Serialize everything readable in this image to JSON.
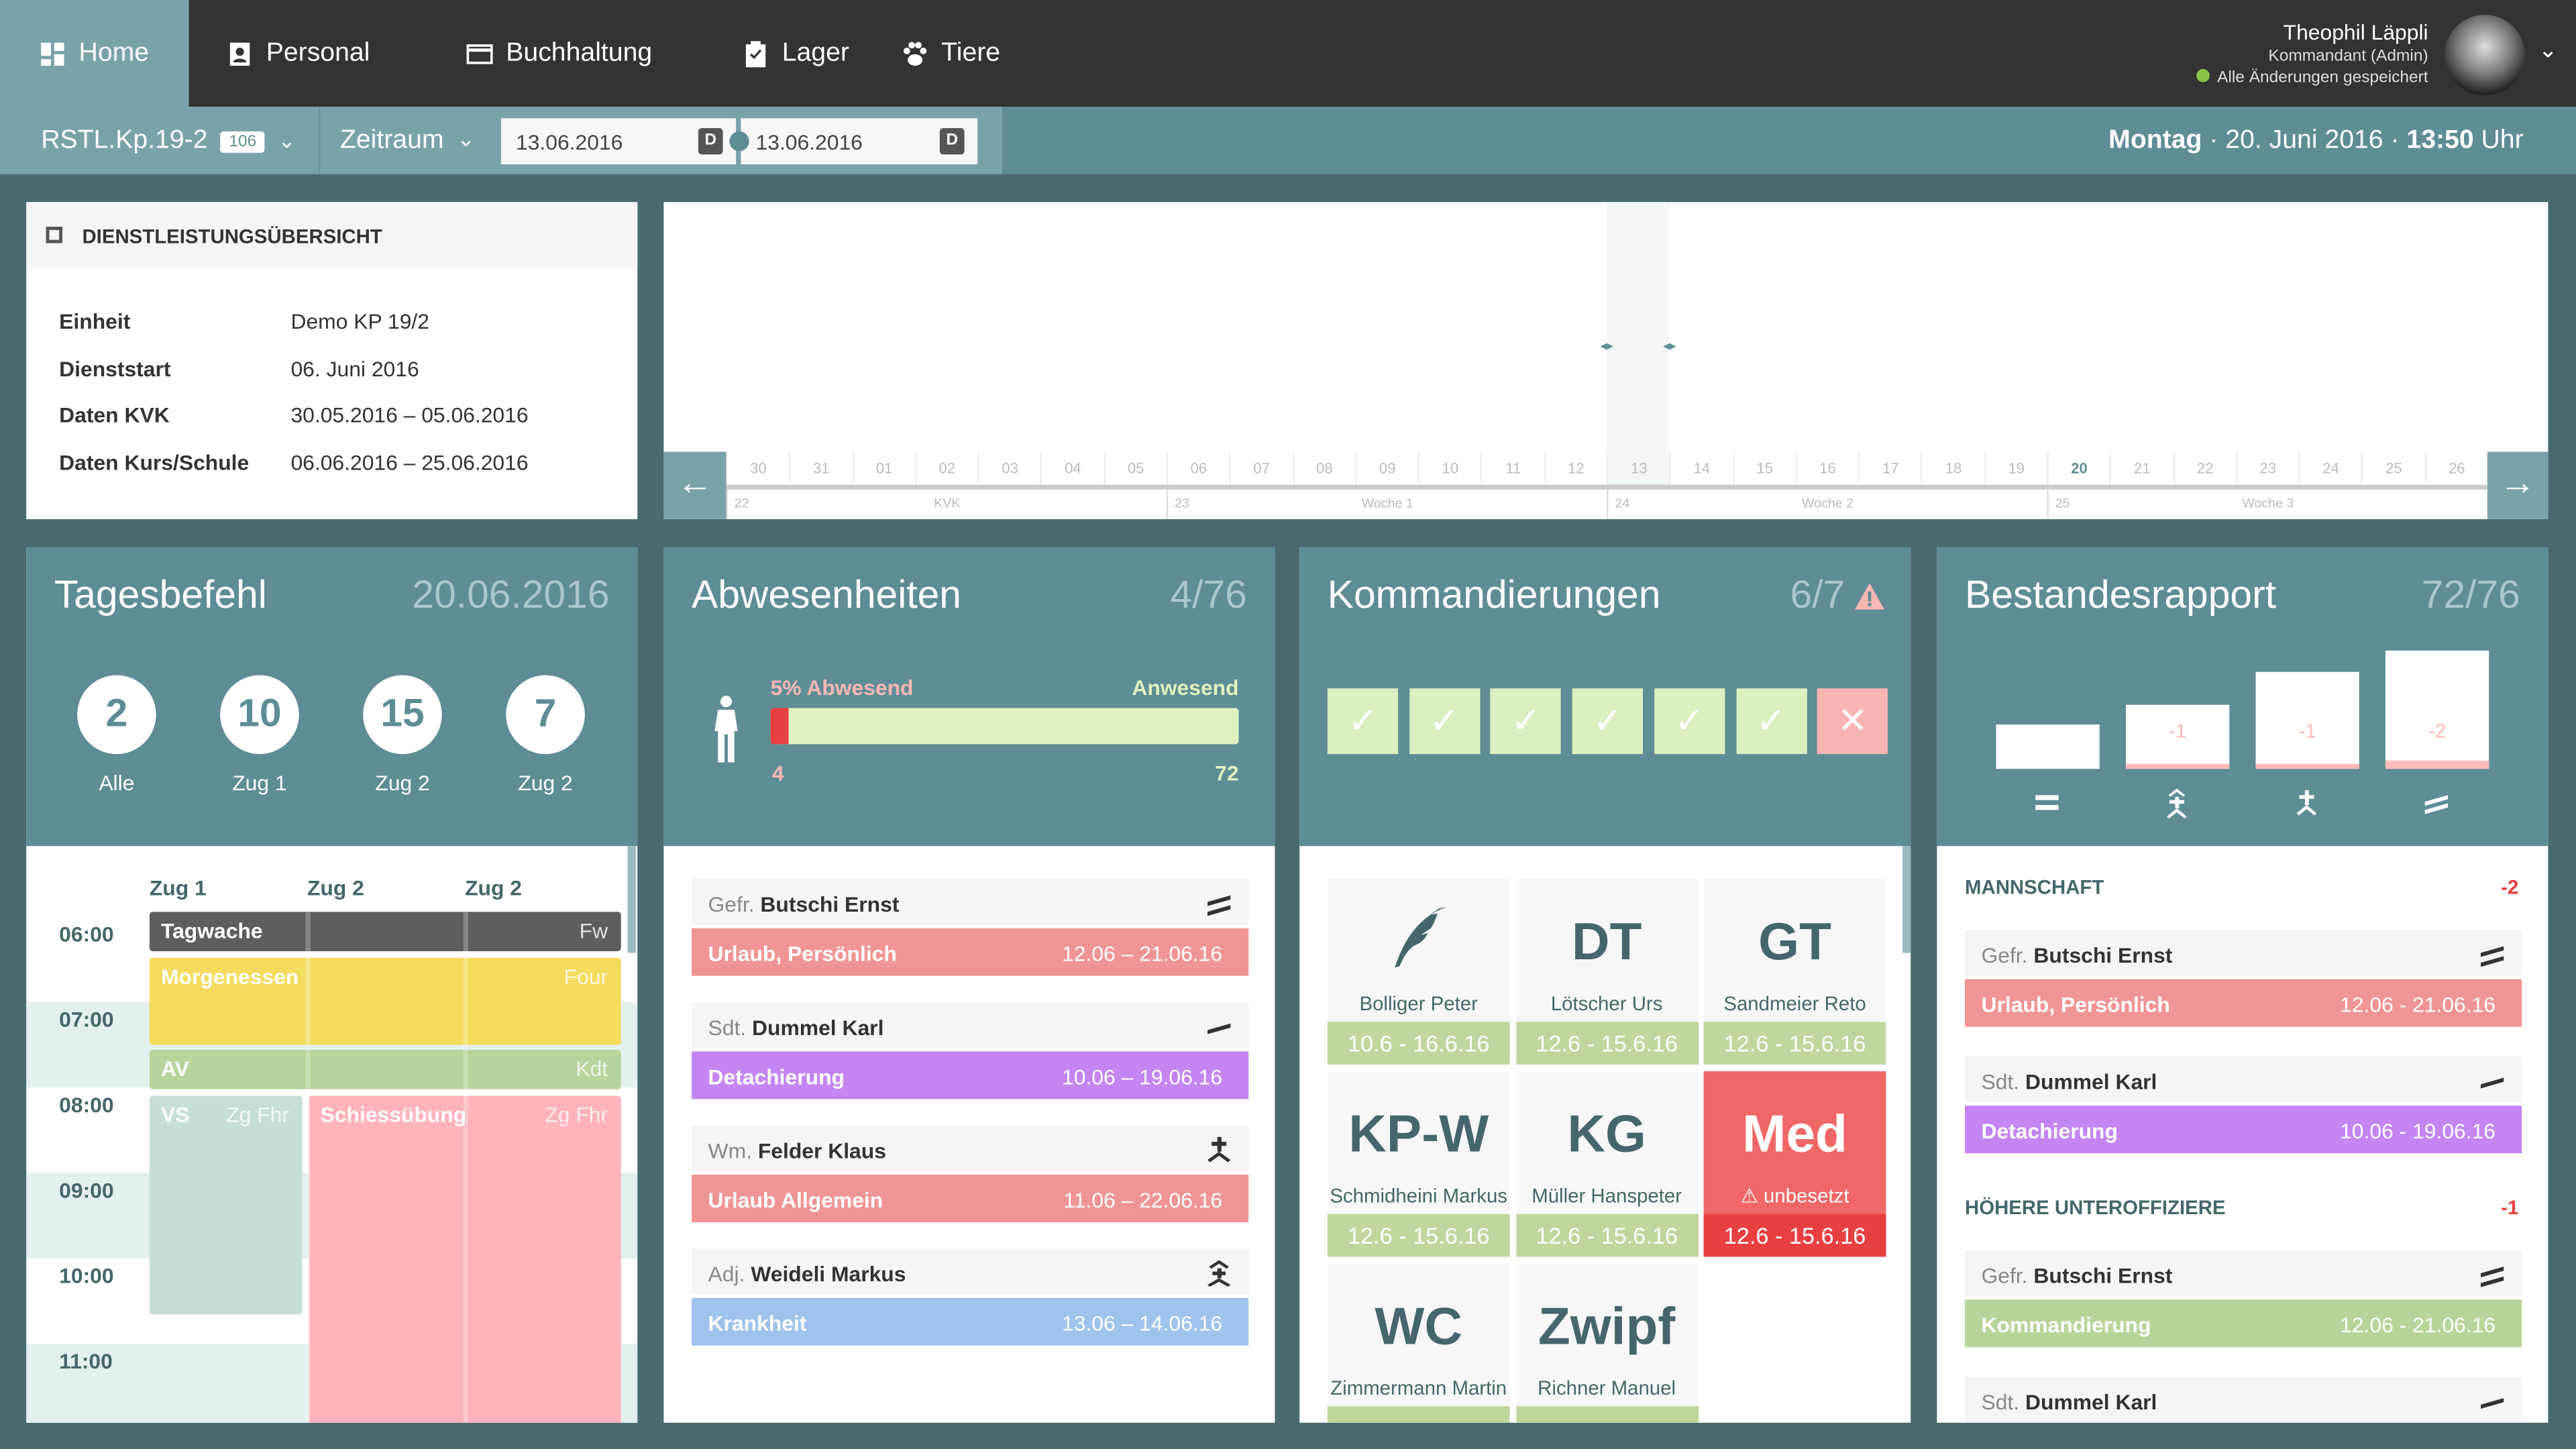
{
  "nav": {
    "items": [
      {
        "label": "Home",
        "icon": "dashboard-icon",
        "active": true
      },
      {
        "label": "Personal",
        "icon": "person-badge-icon"
      },
      {
        "label": "Buchhaltung",
        "icon": "credit-card-icon"
      },
      {
        "label": "Lager",
        "icon": "clipboard-check-icon"
      },
      {
        "label": "Tiere",
        "icon": "paw-icon"
      }
    ]
  },
  "user": {
    "name": "Theophil Läppli",
    "role": "Kommandant (Admin)",
    "status": "Alle Änderungen gespeichert",
    "status_color": "#8bc34a"
  },
  "toolbar": {
    "unit": "RSTL.Kp.19-2",
    "unit_badge": "106",
    "period_label": "Zeitraum",
    "date_from": "13.06.2016",
    "date_to": "13.06.2016",
    "date_icon": "D",
    "now_day": "Montag",
    "now_date": " · 20. Juni 2016 · ",
    "now_time": "13:50",
    "now_suffix": " Uhr"
  },
  "overview": {
    "title": "DIENSTLEISTUNGSÜBERSICHT",
    "rows": [
      {
        "k": "Einheit",
        "v": "Demo KP 19/2"
      },
      {
        "k": "Dienststart",
        "v": "06. Juni 2016"
      },
      {
        "k": "Daten KVK",
        "v": "30.05.2016 – 05.06.2016"
      },
      {
        "k": "Daten Kurs/Schule",
        "v": "06.06.2016 – 25.06.2016"
      }
    ]
  },
  "timeline": {
    "days": [
      "30",
      "31",
      "01",
      "02",
      "03",
      "04",
      "05",
      "06",
      "07",
      "08",
      "09",
      "10",
      "11",
      "12",
      "13",
      "14",
      "15",
      "16",
      "17",
      "18",
      "19",
      "20",
      "21",
      "22",
      "23",
      "24",
      "25",
      "26"
    ],
    "today": "20",
    "selected": "13",
    "weeks": [
      {
        "num": "22",
        "label": "KVK"
      },
      {
        "num": "23",
        "label": "Woche 1"
      },
      {
        "num": "24",
        "label": "Woche 2"
      },
      {
        "num": "25",
        "label": "Woche 3"
      }
    ]
  },
  "tagesbefehl": {
    "title": "Tagesbefehl",
    "date": "20.06.2016",
    "counters": [
      {
        "n": "2",
        "label": "Alle"
      },
      {
        "n": "10",
        "label": "Zug 1"
      },
      {
        "n": "15",
        "label": "Zug 2"
      },
      {
        "n": "7",
        "label": "Zug 2"
      }
    ],
    "columns": [
      "Zug 1",
      "Zug 2",
      "Zug 2"
    ],
    "hours": [
      "06:00",
      "07:00",
      "08:00",
      "09:00",
      "10:00",
      "11:00"
    ],
    "events": [
      {
        "title": "Tagwache",
        "who": "Fw",
        "color": "#5e5e5e"
      },
      {
        "title": "Morgenessen",
        "who": "Four",
        "color": "#f3dc5e"
      },
      {
        "title": "AV",
        "who": "Kdt",
        "color": "#b8d39c"
      },
      {
        "title": "VS",
        "who": "Zg Fhr",
        "color": "#c9dcdc"
      },
      {
        "title": "Schiessübung",
        "who": "Zg Fhr",
        "color": "#feb3bd"
      }
    ]
  },
  "abwesenheiten": {
    "title": "Abwesenheiten",
    "count": "4/76",
    "absent_label": "5% Abwesend",
    "present_label": "Anwesend",
    "absent": "4",
    "present": "72",
    "absent_fraction": 0.053,
    "items": [
      {
        "rank": "Gefr.",
        "name": "Butschi Ernst",
        "rank_icon": "gefreiter-icon",
        "type": "Urlaub, Persönlich",
        "dates": "12.06 – 21.06.16",
        "color": "#f09595"
      },
      {
        "rank": "Sdt.",
        "name": "Dummel Karl",
        "rank_icon": "soldat-icon",
        "type": "Detachierung",
        "dates": "10.06 – 19.06.16",
        "color": "#c486f3"
      },
      {
        "rank": "Wm.",
        "name": "Felder Klaus",
        "rank_icon": "wachtmeister-icon",
        "type": "Urlaub Allgemein",
        "dates": "11.06 – 22.06.16",
        "color": "#f09595"
      },
      {
        "rank": "Adj.",
        "name": "Weideli Markus",
        "rank_icon": "adjutant-icon",
        "type": "Krankheit",
        "dates": "13.06 – 14.06.16",
        "color": "#9fc3ec"
      }
    ]
  },
  "kommandierungen": {
    "title": "Kommandierungen",
    "count": "6/7",
    "warning_icon": "warning-icon",
    "status": [
      "ok",
      "ok",
      "ok",
      "ok",
      "ok",
      "ok",
      "missing"
    ],
    "cells": [
      {
        "abbr": "",
        "icon": "quill-icon",
        "name": "Bolliger Peter",
        "dates": "10.6 - 16.6.16"
      },
      {
        "abbr": "DT",
        "name": "Lötscher Urs",
        "dates": "12.6 - 15.6.16"
      },
      {
        "abbr": "GT",
        "name": "Sandmeier Reto",
        "dates": "12.6 - 15.6.16"
      },
      {
        "abbr": "KP-W",
        "name": "Schmidheini Markus",
        "dates": "12.6 - 15.6.16"
      },
      {
        "abbr": "KG",
        "name": "Müller Hanspeter",
        "dates": "12.6 - 15.6.16"
      },
      {
        "abbr": "Med",
        "name": "unbesetzt",
        "dates": "12.6 - 15.6.16",
        "missing": true
      },
      {
        "abbr": "WC",
        "name": "Zimmermann Martin",
        "dates": ""
      },
      {
        "abbr": "Zwipf",
        "name": "Richner Manuel",
        "dates": ""
      }
    ]
  },
  "bestandesrapport": {
    "title": "Bestandesrapport",
    "count": "72/76",
    "bars": [
      {
        "rank": "offiziere",
        "icon": "officer-icon",
        "value": 1.0,
        "diff": ""
      },
      {
        "rank": "hoehere-uof",
        "icon": "senior-nco-icon",
        "value": 1.45,
        "diff": "-1"
      },
      {
        "rank": "uof",
        "icon": "nco-icon",
        "value": 2.2,
        "diff": "-1"
      },
      {
        "rank": "mannschaft",
        "icon": "soldier-icon",
        "value": 2.65,
        "diff": "-2"
      }
    ],
    "sections": [
      {
        "title": "MANNSCHAFT",
        "diff": "-2",
        "items": [
          {
            "rank": "Gefr.",
            "name": "Butschi Ernst",
            "rank_icon": "gefreiter-icon",
            "type": "Urlaub, Persönlich",
            "dates": "12.06 - 21.06.16",
            "color": "#f09595"
          },
          {
            "rank": "Sdt.",
            "name": "Dummel Karl",
            "rank_icon": "soldat-icon",
            "type": "Detachierung",
            "dates": "10.06 - 19.06.16",
            "color": "#c486f3"
          }
        ]
      },
      {
        "title": "HÖHERE UNTEROFFIZIERE",
        "diff": "-1",
        "items": [
          {
            "rank": "Gefr.",
            "name": "Butschi Ernst",
            "rank_icon": "gefreiter-icon",
            "type": "Kommandierung",
            "dates": "12.06 - 21.06.16",
            "color": "#b9d49a"
          },
          {
            "rank": "Sdt.",
            "name": "Dummel Karl",
            "rank_icon": "soldat-icon",
            "type": "",
            "dates": "",
            "color": ""
          }
        ]
      }
    ]
  },
  "colors": {
    "teal": "#5e8d94",
    "teal_light": "#7aa3a8",
    "dark": "#333333",
    "bg": "#4a6a6e",
    "danger": "#e84040"
  }
}
